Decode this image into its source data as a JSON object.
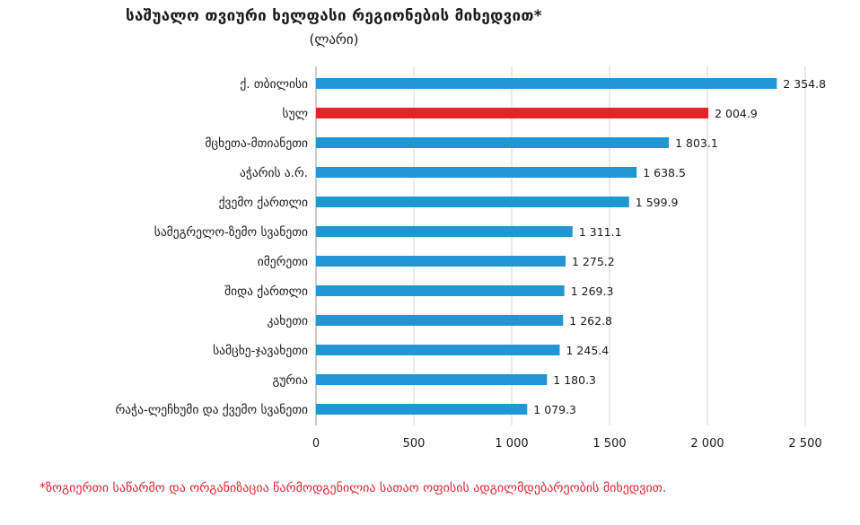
{
  "chart_data": {
    "type": "bar",
    "orientation": "horizontal",
    "title": "საშუალო თვიური ხელფასი რეგიონების მიხედვით*",
    "subtitle": "(ლარი)",
    "categories": [
      "ქ. თბილისი",
      "სულ",
      "მცხეთა-მთიანეთი",
      "აჭარის ა.რ.",
      "ქვემო ქართლი",
      "სამეგრელო-ზემო სვანეთი",
      "იმერეთი",
      "შიდა ქართლი",
      "კახეთი",
      "სამცხე-ჯავახეთი",
      "გურია",
      "რაჭა-ლეჩხუმი და ქვემო სვანეთი"
    ],
    "values": [
      2354.8,
      2004.9,
      1803.1,
      1638.5,
      1599.9,
      1311.1,
      1275.2,
      1269.3,
      1262.8,
      1245.4,
      1180.3,
      1079.3
    ],
    "value_labels": [
      "2 354.8",
      "2 004.9",
      "1 803.1",
      "1 638.5",
      "1 599.9",
      "1 311.1",
      "1 275.2",
      "1 269.3",
      "1 262.8",
      "1 245.4",
      "1 180.3",
      "1 079.3"
    ],
    "xlim": [
      0,
      2500
    ],
    "xticks": [
      0,
      500,
      1000,
      1500,
      2000,
      2500
    ],
    "xtick_labels": [
      "0",
      "500",
      "1 000",
      "1 500",
      "2 000",
      "2 500"
    ],
    "grid": "vertical",
    "bar_color": "#2196d3",
    "highlight_color": "#e3242b",
    "highlight_index": 1
  },
  "footnote": "*ზოგიერთი საწარმო და ორგანიზაცია წარმოდგენილია სათაო ოფისის ადგილმდებარეობის მიხედვით."
}
